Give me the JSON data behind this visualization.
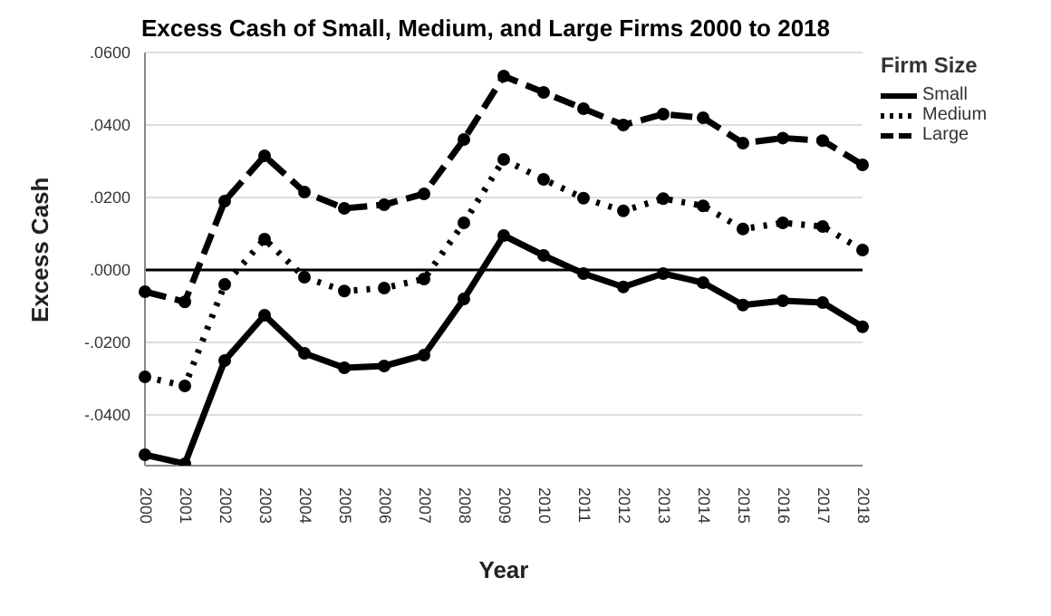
{
  "chart_data": {
    "type": "line",
    "title": "Excess Cash of Small, Medium, and Large Firms 2000 to 2018",
    "xlabel": "Year",
    "ylabel": "Excess Cash",
    "legend_title": "Firm Size",
    "legend": "right",
    "grid": "y",
    "marker": "circle",
    "categories": [
      "2000",
      "2001",
      "2002",
      "2003",
      "2004",
      "2005",
      "2006",
      "2007",
      "2008",
      "2009",
      "2010",
      "2011",
      "2012",
      "2013",
      "2014",
      "2015",
      "2016",
      "2017",
      "2018"
    ],
    "ylim": [
      -0.054,
      0.06
    ],
    "yticks": [
      {
        "value": -0.04,
        "label": "-.0400"
      },
      {
        "value": -0.02,
        "label": "-.0200"
      },
      {
        "value": 0,
        "label": ".0000"
      },
      {
        "value": 0.02,
        "label": ".0200"
      },
      {
        "value": 0.04,
        "label": ".0400"
      },
      {
        "value": 0.06,
        "label": ".0600"
      }
    ],
    "ref_lines": [
      {
        "axis": "y",
        "value": 0,
        "color": "#000000"
      }
    ],
    "series": [
      {
        "name": "Small",
        "color": "#000000",
        "line_style": "solid",
        "values": [
          -0.051,
          -0.0535,
          -0.025,
          -0.0125,
          -0.023,
          -0.027,
          -0.0265,
          -0.0235,
          -0.008,
          0.0095,
          0.004,
          -0.001,
          -0.0047,
          -0.001,
          -0.0035,
          -0.0097,
          -0.0085,
          -0.009,
          -0.0157
        ]
      },
      {
        "name": "Medium",
        "color": "#000000",
        "line_style": "dotted",
        "values": [
          -0.0295,
          -0.032,
          -0.004,
          0.0085,
          -0.002,
          -0.0058,
          -0.005,
          -0.0025,
          0.013,
          0.0305,
          0.025,
          0.0198,
          0.0163,
          0.0197,
          0.0177,
          0.0113,
          0.013,
          0.012,
          0.0055
        ]
      },
      {
        "name": "Large",
        "color": "#000000",
        "line_style": "dashed",
        "values": [
          -0.006,
          -0.0088,
          0.019,
          0.0315,
          0.0215,
          0.017,
          0.018,
          0.021,
          0.036,
          0.0535,
          0.049,
          0.0445,
          0.04,
          0.043,
          0.042,
          0.035,
          0.0364,
          0.0357,
          0.029
        ]
      }
    ]
  }
}
